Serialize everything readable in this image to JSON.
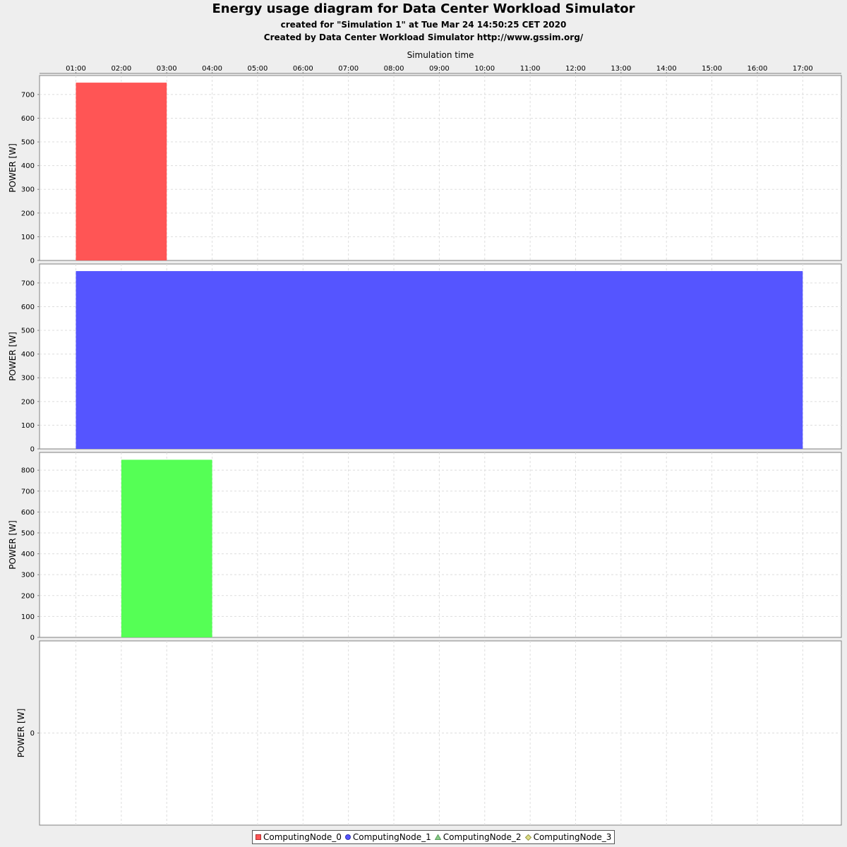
{
  "chart_data": {
    "type": "bar",
    "title": "Energy usage diagram for Data Center Workload Simulator",
    "subtitles": [
      "created for \"Simulation 1\" at Tue Mar 24 14:50:25 CET 2020",
      "Created by Data Center Workload Simulator http://www.gssim.org/"
    ],
    "xlabel": "Simulation time",
    "xticks": [
      "01:00",
      "02:00",
      "03:00",
      "04:00",
      "05:00",
      "06:00",
      "07:00",
      "08:00",
      "09:00",
      "10:00",
      "11:00",
      "12:00",
      "13:00",
      "14:00",
      "15:00",
      "16:00",
      "17:00"
    ],
    "xlim_hours": [
      0.2,
      17.85
    ],
    "grid": true,
    "legend_placement": "bottom",
    "series": [
      {
        "name": "ComputingNode_0",
        "color": "#ff5555",
        "marker": "square",
        "ylabel": "POWER [W]",
        "ylim": [
          0,
          780
        ],
        "yticks": [
          0,
          100,
          200,
          300,
          400,
          500,
          600,
          700
        ],
        "bars": [
          {
            "start": "01:00",
            "end": "03:00",
            "value": 750
          }
        ]
      },
      {
        "name": "ComputingNode_1",
        "color": "#5555ff",
        "marker": "circle",
        "ylabel": "POWER [W]",
        "ylim": [
          0,
          780
        ],
        "yticks": [
          0,
          100,
          200,
          300,
          400,
          500,
          600,
          700
        ],
        "bars": [
          {
            "start": "01:00",
            "end": "17:00",
            "value": 750
          }
        ]
      },
      {
        "name": "ComputingNode_2",
        "color": "#55ff55",
        "marker": "triangle",
        "ylabel": "POWER [W]",
        "ylim": [
          0,
          885
        ],
        "yticks": [
          0,
          100,
          200,
          300,
          400,
          500,
          600,
          700,
          800
        ],
        "bars": [
          {
            "start": "02:00",
            "end": "04:00",
            "value": 850
          }
        ]
      },
      {
        "name": "ComputingNode_3",
        "color": "#cccc55",
        "marker": "diamond",
        "ylabel": "POWER [W]",
        "ylim": [
          -1,
          1
        ],
        "yticks": [
          0
        ],
        "bars": []
      }
    ]
  }
}
